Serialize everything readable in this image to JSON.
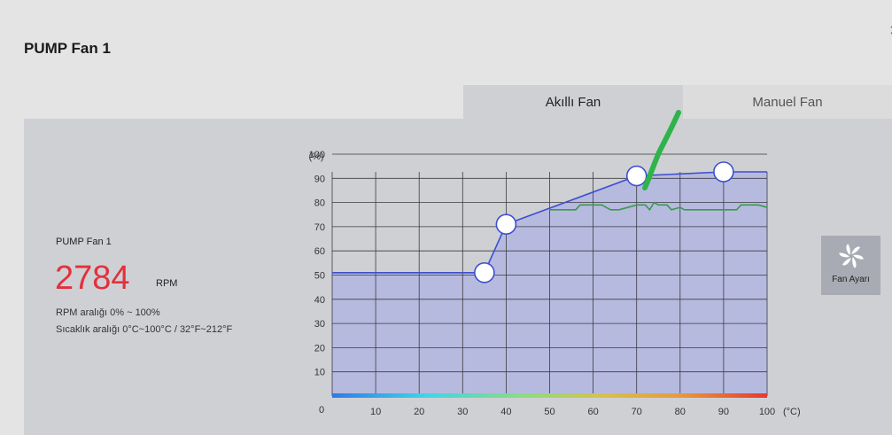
{
  "page": {
    "title": "PUMP Fan 1"
  },
  "tabs": [
    {
      "label": "Akıllı Fan",
      "active": true
    },
    {
      "label": "Manuel Fan",
      "active": false
    }
  ],
  "info": {
    "fan_name": "PUMP Fan 1",
    "rpm_value": "2784",
    "rpm_unit": "RPM",
    "rpm_range": "RPM aralığı  0% ~ 100%",
    "temp_range": "Sıcaklık aralığı  0°C~100°C / 32°F~212°F"
  },
  "fan_settings_button": {
    "label": "Fan Ayarı",
    "icon": "fan-icon"
  },
  "colors": {
    "rpm": "#e2313c",
    "curve": "#3d4fd1",
    "fill": "#b2b6e0",
    "actual": "#3a9a4a",
    "annotation": "#2fb34a"
  },
  "chart_data": {
    "type": "line",
    "xlabel": "(°C)",
    "ylabel": "(%)",
    "xlim": [
      0,
      100
    ],
    "ylim": [
      0,
      100
    ],
    "xticks": [
      "10",
      "20",
      "30",
      "40",
      "50",
      "60",
      "70",
      "80",
      "90",
      "100"
    ],
    "yticks": [
      "10",
      "20",
      "30",
      "40",
      "50",
      "60",
      "70",
      "80",
      "90",
      "100"
    ],
    "origin_label": "0",
    "grid": true,
    "series": [
      {
        "role": "fan-curve",
        "x": [
          0,
          35,
          40,
          70,
          90,
          100
        ],
        "y": [
          51,
          51,
          71,
          91,
          101,
          101
        ],
        "control_points": [
          [
            35,
            51
          ],
          [
            40,
            71
          ],
          [
            70,
            91
          ],
          [
            90,
            101
          ]
        ]
      },
      {
        "role": "current-reading",
        "x": [
          50,
          56,
          57,
          62,
          63,
          64,
          66,
          68,
          70,
          72,
          73,
          74,
          75,
          77,
          78,
          80,
          81,
          83,
          85,
          88,
          90,
          93,
          94,
          96,
          98,
          100
        ],
        "y": [
          77,
          77,
          79,
          79,
          78,
          77,
          77,
          78,
          79,
          79,
          77,
          80,
          79,
          79,
          77,
          78,
          77,
          77,
          77,
          77,
          77,
          77,
          79,
          79,
          79,
          78
        ]
      }
    ]
  }
}
